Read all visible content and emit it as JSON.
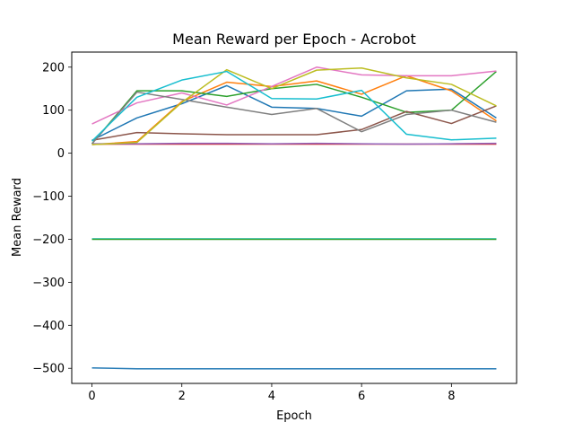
{
  "chart_data": {
    "type": "line",
    "title": "Mean Reward per Epoch - Acrobot",
    "xlabel": "Epoch",
    "ylabel": "Mean Reward",
    "xlim": [
      -0.45,
      9.45
    ],
    "ylim": [
      -535,
      235
    ],
    "x_ticks": [
      0,
      2,
      4,
      6,
      8
    ],
    "x_tick_labels": [
      "0",
      "2",
      "4",
      "6",
      "8"
    ],
    "y_ticks": [
      -500,
      -400,
      -300,
      -200,
      -100,
      0,
      100,
      200
    ],
    "y_tick_labels": [
      "−500",
      "−400",
      "−300",
      "−200",
      "−100",
      "0",
      "100",
      "200"
    ],
    "grid": false,
    "legend": false,
    "x": [
      0,
      1,
      2,
      3,
      4,
      5,
      6,
      7,
      8,
      9
    ],
    "series": [
      {
        "color": "#1f77b4",
        "values": [
          -499,
          -501,
          -501,
          -501,
          -501,
          -501,
          -501,
          -501,
          -501,
          -501
        ]
      },
      {
        "color": "#1f77b4",
        "values": [
          30,
          82,
          115,
          157,
          107,
          104,
          86,
          145,
          149,
          82
        ]
      },
      {
        "color": "#ff7f0e",
        "values": [
          20,
          27,
          120,
          165,
          155,
          168,
          137,
          180,
          145,
          75
        ]
      },
      {
        "color": "#2ca02c",
        "values": [
          22,
          145,
          145,
          132,
          150,
          160,
          130,
          95,
          100,
          190
        ]
      },
      {
        "color": "#d62728",
        "values": [
          21,
          21,
          21,
          21,
          21,
          21,
          21,
          21,
          21,
          21
        ]
      },
      {
        "color": "#9467bd",
        "values": [
          22,
          22,
          23,
          23,
          22,
          23,
          22,
          21,
          22,
          23
        ]
      },
      {
        "color": "#8c564b",
        "values": [
          30,
          48,
          45,
          43,
          43,
          43,
          55,
          97,
          69,
          110
        ]
      },
      {
        "color": "#e377c2",
        "values": [
          68,
          117,
          140,
          112,
          155,
          200,
          182,
          180,
          180,
          191
        ]
      },
      {
        "color": "#7f7f7f",
        "values": [
          22,
          142,
          125,
          107,
          90,
          104,
          50,
          90,
          100,
          72
        ]
      },
      {
        "color": "#bcbd22",
        "values": [
          20,
          25,
          118,
          194,
          150,
          193,
          198,
          175,
          160,
          110
        ]
      },
      {
        "color": "#17becf",
        "values": [
          28,
          130,
          170,
          190,
          127,
          126,
          146,
          44,
          31,
          35
        ]
      },
      {
        "color": "#17becf",
        "values": [
          -199,
          -199,
          -199,
          -199,
          -199,
          -199,
          -199,
          -199,
          -199,
          -199
        ]
      },
      {
        "color": "#2ca02c",
        "values": [
          -200,
          -200,
          -200,
          -200,
          -200,
          -200,
          -200,
          -200,
          -200,
          -200
        ]
      }
    ]
  }
}
